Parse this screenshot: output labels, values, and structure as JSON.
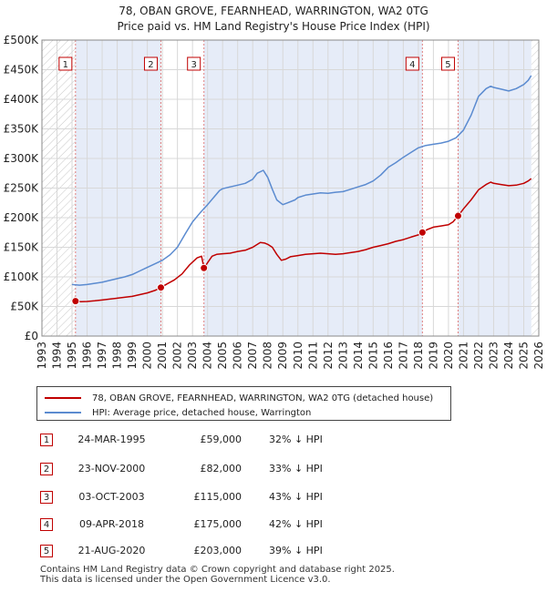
{
  "chart_data": {
    "type": "line",
    "title": "78, OBAN GROVE, FEARNHEAD, WARRINGTON, WA2 0TG",
    "subtitle": "Price paid vs. HM Land Registry's House Price Index (HPI)",
    "xlabel": "",
    "ylabel": "",
    "xlim": [
      1993,
      2026
    ],
    "ylim": [
      0,
      500000
    ],
    "x_ticks": [
      "1993",
      "1994",
      "1995",
      "1996",
      "1997",
      "1998",
      "1999",
      "2000",
      "2001",
      "2002",
      "2003",
      "2004",
      "2005",
      "2006",
      "2007",
      "2008",
      "2009",
      "2010",
      "2011",
      "2012",
      "2013",
      "2014",
      "2015",
      "2016",
      "2017",
      "2018",
      "2019",
      "2020",
      "2021",
      "2022",
      "2023",
      "2024",
      "2025",
      "2026"
    ],
    "y_ticks": [
      {
        "value": 0,
        "label": "£0"
      },
      {
        "value": 50000,
        "label": "£50K"
      },
      {
        "value": 100000,
        "label": "£100K"
      },
      {
        "value": 150000,
        "label": "£150K"
      },
      {
        "value": 200000,
        "label": "£200K"
      },
      {
        "value": 250000,
        "label": "£250K"
      },
      {
        "value": 300000,
        "label": "£300K"
      },
      {
        "value": 350000,
        "label": "£350K"
      },
      {
        "value": 400000,
        "label": "£400K"
      },
      {
        "value": 450000,
        "label": "£450K"
      },
      {
        "value": 500000,
        "label": "£500K"
      }
    ],
    "grid": true,
    "series": [
      {
        "name": "78, OBAN GROVE, FEARNHEAD, WARRINGTON, WA2 0TG (detached house)",
        "color": "#c00000",
        "x": [
          1995.23,
          1995.6,
          1996,
          1996.5,
          1997,
          1997.5,
          1998,
          1998.5,
          1999,
          1999.5,
          2000,
          2000.5,
          2000.9,
          2001.3,
          2001.8,
          2002.3,
          2002.8,
          2003.3,
          2003.6,
          2003.76,
          2004,
          2004.3,
          2004.6,
          2005,
          2005.5,
          2006,
          2006.5,
          2007,
          2007.5,
          2007.8,
          2008,
          2008.3,
          2008.6,
          2008.9,
          2009.2,
          2009.5,
          2010,
          2010.5,
          2011,
          2011.5,
          2012,
          2012.5,
          2013,
          2013.5,
          2014,
          2014.5,
          2015,
          2015.5,
          2016,
          2016.5,
          2017,
          2017.5,
          2018,
          2018.27,
          2018.6,
          2019,
          2019.5,
          2020,
          2020.3,
          2020.64,
          2021,
          2021.5,
          2022,
          2022.5,
          2022.8,
          2023,
          2023.5,
          2024,
          2024.5,
          2025,
          2025.3,
          2025.5
        ],
        "y": [
          59000,
          58000,
          58500,
          59500,
          61000,
          62500,
          64000,
          65500,
          67000,
          70000,
          73000,
          77000,
          82000,
          88000,
          95000,
          105000,
          120000,
          132000,
          135000,
          115000,
          124000,
          135000,
          138000,
          139000,
          140000,
          143000,
          145000,
          150000,
          158000,
          157000,
          155000,
          150000,
          138000,
          128000,
          130000,
          134000,
          136000,
          138000,
          139000,
          140000,
          139000,
          138000,
          139000,
          141000,
          143000,
          146000,
          150000,
          153000,
          156000,
          160000,
          163000,
          167000,
          171000,
          175000,
          180000,
          184000,
          186000,
          188000,
          193000,
          203000,
          215000,
          230000,
          247000,
          256000,
          260000,
          258000,
          256000,
          254000,
          255000,
          258000,
          262000,
          266000
        ]
      },
      {
        "name": "HPI: Average price, detached house, Warrington",
        "color": "#5b8bd0",
        "x": [
          1995,
          1995.5,
          1996,
          1996.5,
          1997,
          1997.5,
          1998,
          1998.5,
          1999,
          1999.5,
          2000,
          2000.5,
          2001,
          2001.5,
          2002,
          2002.5,
          2003,
          2003.5,
          2004,
          2004.5,
          2004.8,
          2005,
          2005.5,
          2006,
          2006.5,
          2007,
          2007.3,
          2007.7,
          2008,
          2008.3,
          2008.6,
          2009,
          2009.3,
          2009.8,
          2010,
          2010.5,
          2011,
          2011.5,
          2012,
          2012.5,
          2013,
          2013.5,
          2014,
          2014.5,
          2015,
          2015.5,
          2016,
          2016.5,
          2017,
          2017.5,
          2018,
          2018.5,
          2019,
          2019.5,
          2020,
          2020.5,
          2021,
          2021.5,
          2022,
          2022.5,
          2022.8,
          2023,
          2023.5,
          2024,
          2024.5,
          2025,
          2025.3,
          2025.5
        ],
        "y": [
          87000,
          86000,
          87000,
          89000,
          91000,
          94000,
          97000,
          100000,
          104000,
          110000,
          116000,
          122000,
          128000,
          137000,
          150000,
          172000,
          193000,
          208000,
          222000,
          237000,
          246000,
          249000,
          252000,
          255000,
          258000,
          265000,
          275000,
          280000,
          268000,
          248000,
          230000,
          222000,
          225000,
          230000,
          234000,
          238000,
          240000,
          242000,
          241000,
          243000,
          244000,
          248000,
          252000,
          256000,
          262000,
          272000,
          285000,
          293000,
          302000,
          310000,
          318000,
          322000,
          324000,
          326000,
          329000,
          335000,
          348000,
          373000,
          405000,
          418000,
          422000,
          420000,
          417000,
          414000,
          418000,
          425000,
          432000,
          440000
        ]
      }
    ],
    "sales": [
      {
        "label": "1",
        "year": 1995.23,
        "price": 59000
      },
      {
        "label": "2",
        "year": 2000.9,
        "price": 82000
      },
      {
        "label": "3",
        "year": 2003.76,
        "price": 115000
      },
      {
        "label": "4",
        "year": 2018.27,
        "price": 175000
      },
      {
        "label": "5",
        "year": 2020.64,
        "price": 203000
      }
    ],
    "shade_ranges": [
      [
        1995.23,
        2000.9
      ],
      [
        2003.76,
        2018.27
      ],
      [
        2020.64,
        2025.5
      ]
    ]
  },
  "legend": {
    "property_label": "78, OBAN GROVE, FEARNHEAD, WARRINGTON, WA2 0TG (detached house)",
    "hpi_label": "HPI: Average price, detached house, Warrington",
    "property_color": "#c00000",
    "hpi_color": "#5b8bd0"
  },
  "sales_table": [
    {
      "num": "1",
      "date": "24-MAR-1995",
      "price": "£59,000",
      "hpi": "32% ↓ HPI"
    },
    {
      "num": "2",
      "date": "23-NOV-2000",
      "price": "£82,000",
      "hpi": "33% ↓ HPI"
    },
    {
      "num": "3",
      "date": "03-OCT-2003",
      "price": "£115,000",
      "hpi": "43% ↓ HPI"
    },
    {
      "num": "4",
      "date": "09-APR-2018",
      "price": "£175,000",
      "hpi": "42% ↓ HPI"
    },
    {
      "num": "5",
      "date": "21-AUG-2020",
      "price": "£203,000",
      "hpi": "39% ↓ HPI"
    }
  ],
  "footer": {
    "line1": "Contains HM Land Registry data © Crown copyright and database right 2025.",
    "line2": "This data is licensed under the Open Government Licence v3.0."
  }
}
